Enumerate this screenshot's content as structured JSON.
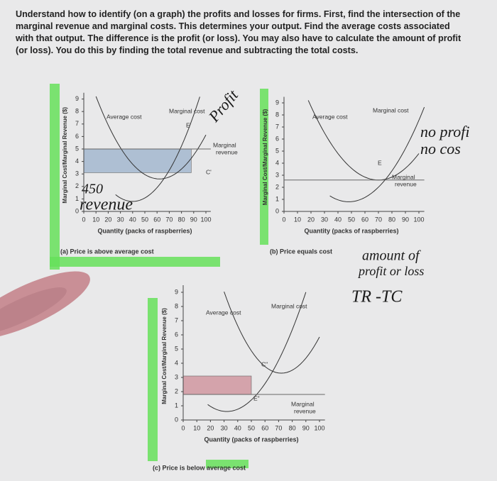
{
  "header": {
    "text": "Understand how to identify (on a graph) the profits and losses for firms. First, find the intersection of the marginal revenue and marginal costs. This determines your output. Find the average costs associated with that output. The difference is the profit (or loss). You may also have to calculate the amount of profit (or loss). You do this by finding the total revenue and subtracting the total costs."
  },
  "panels": [
    {
      "caption": "(a) Price is above average cost",
      "y_axis_label": "Marginal Cost/Marginal Revenue ($)",
      "x_axis_label": "Quantity (packs of raspberries)",
      "yticks": [
        0,
        1,
        2,
        3,
        4,
        5,
        6,
        7,
        8,
        9
      ],
      "xticks": [
        0,
        10,
        20,
        30,
        40,
        50,
        60,
        70,
        80,
        90,
        100
      ],
      "average_cost_label": "Average cost",
      "marginal_cost_label": "Marginal cost",
      "marginal_revenue_label": [
        "Marginal",
        "revenue"
      ],
      "point_labels": [
        "E'",
        "C'"
      ]
    },
    {
      "caption": "(b) Price equals cost",
      "y_axis_label": "Marginal Cost/Marginal Revenue ($)",
      "x_axis_label": "Quantity (packs of raspberries)",
      "yticks": [
        0,
        1,
        2,
        3,
        4,
        5,
        6,
        7,
        8,
        9
      ],
      "xticks": [
        0,
        10,
        20,
        30,
        40,
        50,
        60,
        70,
        80,
        90,
        100
      ],
      "average_cost_label": "Average cost",
      "marginal_cost_label": "Marginal cost",
      "marginal_revenue_label": [
        "Marginal",
        "revenue"
      ],
      "point_labels": [
        "E"
      ]
    },
    {
      "caption": "(c) Price is below average cost",
      "y_axis_label": "Marginal Cost/Marginal Revenue ($)",
      "x_axis_label": "Quantity (packs of raspberries)",
      "yticks": [
        0,
        1,
        2,
        3,
        4,
        5,
        6,
        7,
        8,
        9
      ],
      "xticks": [
        0,
        10,
        20,
        30,
        40,
        50,
        60,
        70,
        80,
        90,
        100
      ],
      "average_cost_label": "Average cost",
      "marginal_cost_label": "Marginal cost",
      "marginal_revenue_label": [
        "Marginal",
        "revenue"
      ],
      "point_labels": [
        "C\"",
        "E\""
      ]
    }
  ],
  "handwriting": [
    "Profit",
    "450",
    "revenue",
    "no profi",
    "no cos",
    "amount of",
    "profit or loss",
    "TR -TC"
  ]
}
